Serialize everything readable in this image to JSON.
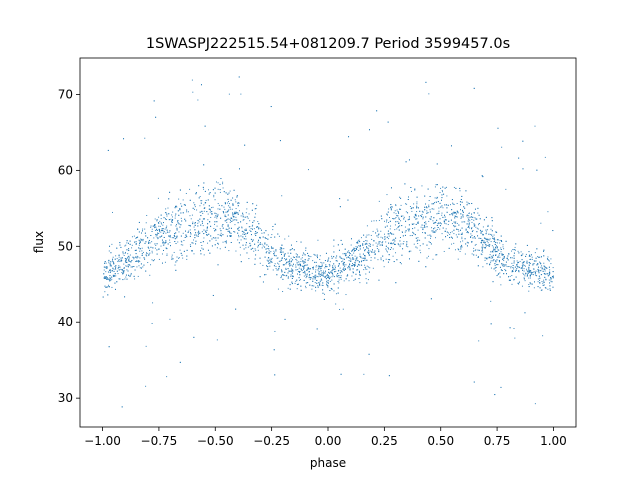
{
  "chart_data": {
    "type": "scatter",
    "title": "1SWASPJ222515.54+081209.7 Period 3599457.0s",
    "xlabel": "phase",
    "ylabel": "flux",
    "xlim": [
      -1.1,
      1.1
    ],
    "ylim": [
      26.2,
      74.8
    ],
    "xticks": [
      -1.0,
      -0.75,
      -0.5,
      -0.25,
      0.0,
      0.25,
      0.5,
      0.75,
      1.0
    ],
    "xtick_labels": [
      "−1.00",
      "−0.75",
      "−0.50",
      "−0.25",
      "0.00",
      "0.25",
      "0.50",
      "0.75",
      "1.00"
    ],
    "yticks": [
      30,
      40,
      50,
      60,
      70
    ],
    "ytick_labels": [
      "30",
      "40",
      "50",
      "60",
      "70"
    ],
    "grid": false,
    "marker_color": "#1f77b4",
    "series": [
      {
        "x": [
          -1.0,
          -0.95,
          -0.9,
          -0.85,
          -0.8,
          -0.75,
          -0.7,
          -0.65,
          -0.6,
          -0.55,
          -0.5,
          -0.45,
          -0.4,
          -0.35,
          -0.3,
          -0.25,
          -0.2,
          -0.15,
          -0.1,
          -0.05,
          0.0,
          0.05,
          0.1,
          0.15,
          0.2,
          0.25,
          0.3,
          0.35,
          0.4,
          0.45,
          0.5,
          0.55,
          0.6,
          0.65,
          0.7,
          0.75,
          0.8,
          0.85,
          0.9,
          0.95,
          1.0
        ],
        "y": [
          46,
          47,
          48,
          49,
          50,
          51.5,
          52,
          52.5,
          53,
          53.5,
          54,
          54,
          53,
          52,
          50.5,
          49,
          48,
          47.5,
          47,
          46.5,
          46,
          47,
          48,
          49,
          50,
          51.5,
          52,
          52.5,
          53,
          53.5,
          54,
          54,
          53,
          52,
          50.5,
          49,
          48,
          47.5,
          47,
          46.5,
          46
        ],
        "spread": [
          3.5,
          3.5,
          3.5,
          4,
          4,
          5,
          6,
          6.5,
          6,
          6,
          6,
          5.5,
          5,
          5,
          4.5,
          4,
          4,
          4,
          3.5,
          3.5,
          3.5,
          3.5,
          3.5,
          4,
          4,
          5,
          6,
          6.5,
          6,
          6,
          6,
          5.5,
          5,
          5,
          4.5,
          4,
          4,
          4,
          3.5,
          3.5,
          3.5
        ]
      }
    ]
  }
}
